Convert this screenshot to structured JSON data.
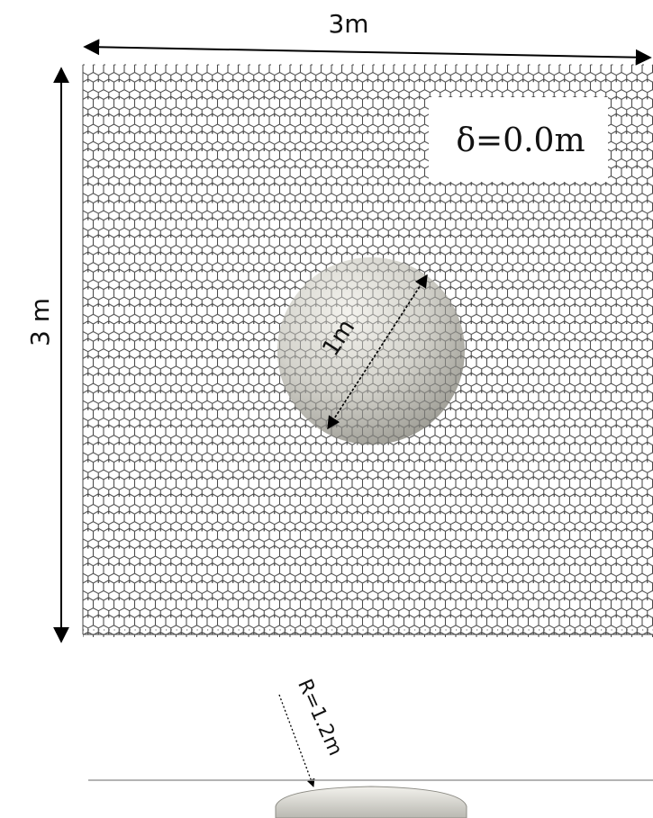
{
  "labels": {
    "width": "3m",
    "height": "3 m",
    "delta": "δ=0.0m",
    "diameter": "1m",
    "radius": "R=1.2m"
  },
  "colors": {
    "mesh": "#4a4a4a",
    "arrow": "#000000",
    "sphere_light": "#f4f3ee",
    "sphere_dark": "#9d9c94",
    "plane_line": "#9a9a9a",
    "label_box": "#ffffff"
  }
}
